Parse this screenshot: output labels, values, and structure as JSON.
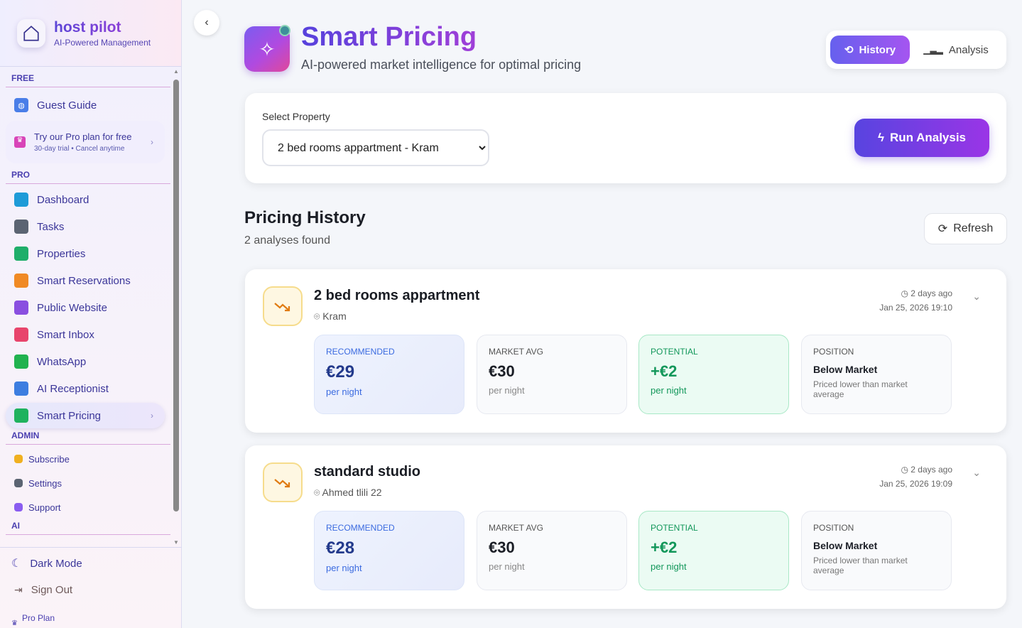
{
  "brand": {
    "title": "host pilot",
    "subtitle": "AI-Powered Management"
  },
  "sidebar": {
    "free_label": "FREE",
    "pro_label": "PRO",
    "admin_label": "ADMIN",
    "ai_label": "AI",
    "guest_guide": "Guest Guide",
    "promo": {
      "title": "Try our Pro plan for free",
      "subtitle": "30-day trial • Cancel anytime"
    },
    "pro_items": [
      {
        "label": "Dashboard",
        "color": "#1e9bd8"
      },
      {
        "label": "Tasks",
        "color": "#5b6472"
      },
      {
        "label": "Properties",
        "color": "#1fae6a"
      },
      {
        "label": "Smart Reservations",
        "color": "#f08a24"
      },
      {
        "label": "Public Website",
        "color": "#8a4fe0"
      },
      {
        "label": "Smart Inbox",
        "color": "#e8456c"
      },
      {
        "label": "WhatsApp",
        "color": "#21b24f"
      },
      {
        "label": "AI Receptionist",
        "color": "#3d7ee0"
      },
      {
        "label": "Smart Pricing",
        "color": "#1fb25e",
        "active": true
      }
    ],
    "admin_items": [
      {
        "label": "Subscribe",
        "color": "#f0b020"
      },
      {
        "label": "Settings",
        "color": "#5b6472"
      },
      {
        "label": "Support",
        "color": "#8a5cf0"
      }
    ],
    "dark_mode": "Dark Mode",
    "sign_out": "Sign Out",
    "plan": "Pro Plan"
  },
  "header": {
    "title": "Smart Pricing",
    "subtitle": "AI-powered market intelligence for optimal pricing",
    "tabs": [
      "History",
      "Analysis"
    ],
    "active_tab": "History"
  },
  "selector": {
    "label": "Select Property",
    "value": "2 bed rooms appartment - Kram",
    "run_label": "Run Analysis"
  },
  "history": {
    "title": "Pricing History",
    "count": "2 analyses found",
    "refresh": "Refresh",
    "items": [
      {
        "name": "2 bed rooms appartment",
        "location": "Kram",
        "ago": "2 days ago",
        "date": "Jan 25, 2026 19:10",
        "recommended": "€29",
        "market_avg": "€30",
        "potential": "+€2",
        "position": "Below Market",
        "position_note": "Priced lower than market average"
      },
      {
        "name": "standard studio",
        "location": "Ahmed tlili 22",
        "ago": "2 days ago",
        "date": "Jan 25, 2026 19:09",
        "recommended": "€28",
        "market_avg": "€30",
        "potential": "+€2",
        "position": "Below Market",
        "position_note": "Priced lower than market average"
      }
    ],
    "labels": {
      "recommended": "RECOMMENDED",
      "market_avg": "MARKET AVG",
      "potential": "POTENTIAL",
      "position": "POSITION",
      "per_night": "per night"
    }
  }
}
